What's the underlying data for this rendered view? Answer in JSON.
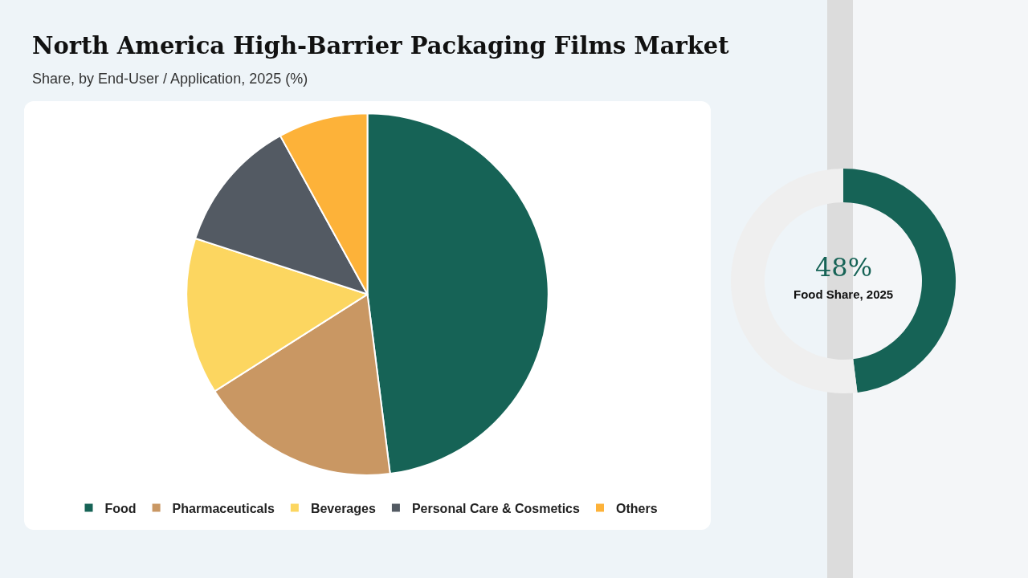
{
  "chart_data": [
    {
      "type": "pie",
      "title": "North America High-Barrier Packaging Films Market",
      "subtitle": "Share, by End-User / Application, 2025 (%)",
      "categories": [
        "Food",
        "Pharmaceuticals",
        "Beverages",
        "Personal Care & Cosmetics",
        "Others"
      ],
      "values": [
        48,
        18,
        14,
        12,
        8
      ],
      "colors": [
        "#166356",
        "#c99763",
        "#fcd660",
        "#535a63",
        "#fdb239"
      ],
      "legend": "bottom"
    },
    {
      "type": "donut",
      "categories": [
        null,
        null
      ],
      "values": [
        48,
        52
      ],
      "colors": [
        "#166356",
        "#efefef"
      ],
      "annotations": [
        "48%",
        "Food Share, 2025"
      ],
      "legend": false
    }
  ]
}
